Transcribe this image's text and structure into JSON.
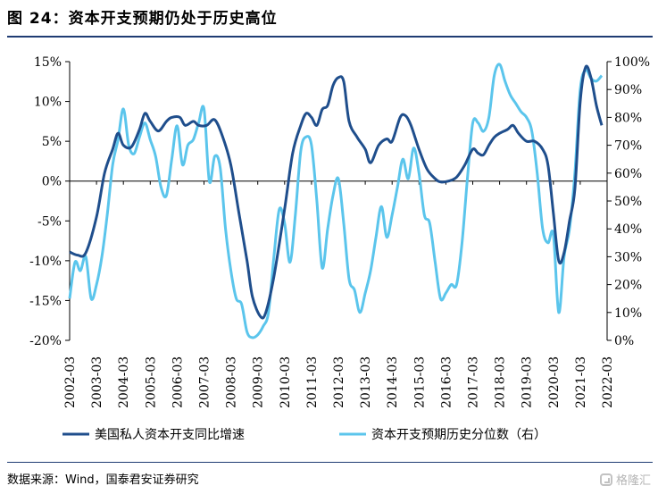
{
  "header": {
    "title": "图 24：资本开支预期仍处于历史高位"
  },
  "footer": {
    "source": "数据来源：Wind，国泰君安证券研究",
    "watermark": "格隆汇"
  },
  "colors": {
    "series1": "#1f4e8c",
    "series2": "#5bc5ec",
    "axis": "#000000",
    "rule": "#1f3b73"
  },
  "chart_data": {
    "type": "line",
    "x_tick_labels": [
      "2002-03",
      "2003-03",
      "2004-03",
      "2005-03",
      "2006-03",
      "2007-03",
      "2008-03",
      "2009-03",
      "2010-03",
      "2011-03",
      "2012-03",
      "2013-03",
      "2014-03",
      "2015-03",
      "2016-03",
      "2017-03",
      "2018-03",
      "2019-03",
      "2020-03",
      "2021-03",
      "2022-03"
    ],
    "x_range": [
      2002.2,
      2022.2
    ],
    "y_left": {
      "min": -20,
      "max": 15,
      "ticks": [
        "-20%",
        "-15%",
        "-10%",
        "-5%",
        "0%",
        "5%",
        "10%",
        "15%"
      ],
      "tick_values": [
        -20,
        -15,
        -10,
        -5,
        0,
        5,
        10,
        15
      ]
    },
    "y_right": {
      "min": 0,
      "max": 100,
      "ticks": [
        "0%",
        "10%",
        "20%",
        "30%",
        "40%",
        "50%",
        "60%",
        "70%",
        "80%",
        "90%",
        "100%"
      ],
      "tick_values": [
        0,
        10,
        20,
        30,
        40,
        50,
        60,
        70,
        80,
        90,
        100
      ]
    },
    "legend_position": "bottom",
    "series": [
      {
        "name": "美国私人资本开支同比增速",
        "axis": "left",
        "points": [
          [
            2002.2,
            -8.9
          ],
          [
            2002.5,
            -9.3
          ],
          [
            2002.8,
            -9.0
          ],
          [
            2003.2,
            -4.5
          ],
          [
            2003.5,
            1.0
          ],
          [
            2003.8,
            4.0
          ],
          [
            2004.0,
            6.0
          ],
          [
            2004.2,
            4.5
          ],
          [
            2004.5,
            4.3
          ],
          [
            2004.8,
            6.5
          ],
          [
            2005.0,
            8.5
          ],
          [
            2005.2,
            7.5
          ],
          [
            2005.5,
            6.3
          ],
          [
            2005.8,
            7.5
          ],
          [
            2006.0,
            8.0
          ],
          [
            2006.3,
            8.0
          ],
          [
            2006.5,
            7.0
          ],
          [
            2006.8,
            7.5
          ],
          [
            2007.0,
            7.0
          ],
          [
            2007.3,
            7.0
          ],
          [
            2007.6,
            7.7
          ],
          [
            2007.9,
            5.5
          ],
          [
            2008.2,
            2.0
          ],
          [
            2008.5,
            -4.0
          ],
          [
            2008.8,
            -10.0
          ],
          [
            2009.0,
            -14.5
          ],
          [
            2009.3,
            -17.0
          ],
          [
            2009.5,
            -16.5
          ],
          [
            2009.8,
            -12.0
          ],
          [
            2010.2,
            -3.5
          ],
          [
            2010.5,
            3.5
          ],
          [
            2010.8,
            7.0
          ],
          [
            2011.0,
            8.5
          ],
          [
            2011.2,
            8.0
          ],
          [
            2011.4,
            7.0
          ],
          [
            2011.6,
            9.0
          ],
          [
            2011.8,
            9.5
          ],
          [
            2012.0,
            12.0
          ],
          [
            2012.2,
            13.0
          ],
          [
            2012.4,
            12.5
          ],
          [
            2012.6,
            7.5
          ],
          [
            2012.9,
            5.5
          ],
          [
            2013.2,
            4.0
          ],
          [
            2013.4,
            2.3
          ],
          [
            2013.7,
            4.5
          ],
          [
            2014.0,
            5.3
          ],
          [
            2014.2,
            5.0
          ],
          [
            2014.5,
            8.0
          ],
          [
            2014.7,
            8.2
          ],
          [
            2014.9,
            7.0
          ],
          [
            2015.2,
            4.0
          ],
          [
            2015.5,
            1.5
          ],
          [
            2015.8,
            0.3
          ],
          [
            2016.0,
            -0.1
          ],
          [
            2016.3,
            0.0
          ],
          [
            2016.6,
            0.5
          ],
          [
            2016.9,
            2.0
          ],
          [
            2017.2,
            4.0
          ],
          [
            2017.4,
            3.5
          ],
          [
            2017.6,
            3.3
          ],
          [
            2017.8,
            4.5
          ],
          [
            2018.0,
            5.5
          ],
          [
            2018.2,
            6.0
          ],
          [
            2018.5,
            6.5
          ],
          [
            2018.7,
            7.0
          ],
          [
            2018.9,
            6.0
          ],
          [
            2019.2,
            5.0
          ],
          [
            2019.5,
            5.0
          ],
          [
            2019.8,
            4.0
          ],
          [
            2020.0,
            2.0
          ],
          [
            2020.2,
            -4.0
          ],
          [
            2020.4,
            -10.0
          ],
          [
            2020.6,
            -9.0
          ],
          [
            2020.8,
            -5.0
          ],
          [
            2021.0,
            -1.0
          ],
          [
            2021.2,
            10.0
          ],
          [
            2021.4,
            14.3
          ],
          [
            2021.6,
            13.0
          ],
          [
            2021.8,
            9.5
          ],
          [
            2022.0,
            7.0
          ]
        ]
      },
      {
        "name": "资本开支预期历史分位数（右）",
        "axis": "right",
        "points": [
          [
            2002.2,
            15
          ],
          [
            2002.4,
            28
          ],
          [
            2002.6,
            25
          ],
          [
            2002.8,
            30
          ],
          [
            2003.0,
            15
          ],
          [
            2003.2,
            20
          ],
          [
            2003.4,
            30
          ],
          [
            2003.6,
            45
          ],
          [
            2003.8,
            63
          ],
          [
            2004.0,
            72
          ],
          [
            2004.2,
            83
          ],
          [
            2004.4,
            70
          ],
          [
            2004.6,
            67
          ],
          [
            2004.8,
            73
          ],
          [
            2005.0,
            78
          ],
          [
            2005.2,
            72
          ],
          [
            2005.4,
            66
          ],
          [
            2005.6,
            55
          ],
          [
            2005.8,
            52
          ],
          [
            2006.0,
            65
          ],
          [
            2006.2,
            77
          ],
          [
            2006.4,
            63
          ],
          [
            2006.6,
            70
          ],
          [
            2006.8,
            72
          ],
          [
            2007.0,
            78
          ],
          [
            2007.2,
            83
          ],
          [
            2007.4,
            57
          ],
          [
            2007.6,
            66
          ],
          [
            2007.8,
            62
          ],
          [
            2008.0,
            40
          ],
          [
            2008.2,
            25
          ],
          [
            2008.4,
            15
          ],
          [
            2008.6,
            13
          ],
          [
            2008.8,
            3
          ],
          [
            2009.0,
            1
          ],
          [
            2009.2,
            2
          ],
          [
            2009.4,
            5
          ],
          [
            2009.6,
            10
          ],
          [
            2009.8,
            30
          ],
          [
            2010.0,
            47
          ],
          [
            2010.2,
            42
          ],
          [
            2010.4,
            28
          ],
          [
            2010.6,
            45
          ],
          [
            2010.8,
            68
          ],
          [
            2011.0,
            73
          ],
          [
            2011.2,
            70
          ],
          [
            2011.4,
            50
          ],
          [
            2011.6,
            26
          ],
          [
            2011.8,
            40
          ],
          [
            2012.0,
            52
          ],
          [
            2012.2,
            58
          ],
          [
            2012.4,
            42
          ],
          [
            2012.6,
            22
          ],
          [
            2012.8,
            18
          ],
          [
            2013.0,
            10
          ],
          [
            2013.2,
            17
          ],
          [
            2013.4,
            25
          ],
          [
            2013.6,
            37
          ],
          [
            2013.8,
            48
          ],
          [
            2014.0,
            37
          ],
          [
            2014.2,
            45
          ],
          [
            2014.4,
            55
          ],
          [
            2014.6,
            65
          ],
          [
            2014.8,
            58
          ],
          [
            2015.0,
            69
          ],
          [
            2015.2,
            60
          ],
          [
            2015.4,
            45
          ],
          [
            2015.6,
            42
          ],
          [
            2015.8,
            28
          ],
          [
            2016.0,
            15
          ],
          [
            2016.2,
            17
          ],
          [
            2016.4,
            20
          ],
          [
            2016.6,
            20
          ],
          [
            2016.8,
            35
          ],
          [
            2017.0,
            58
          ],
          [
            2017.2,
            78
          ],
          [
            2017.4,
            78
          ],
          [
            2017.6,
            75
          ],
          [
            2017.8,
            80
          ],
          [
            2018.0,
            95
          ],
          [
            2018.2,
            99
          ],
          [
            2018.4,
            93
          ],
          [
            2018.6,
            88
          ],
          [
            2018.8,
            85
          ],
          [
            2019.0,
            82
          ],
          [
            2019.2,
            80
          ],
          [
            2019.4,
            75
          ],
          [
            2019.6,
            60
          ],
          [
            2019.8,
            40
          ],
          [
            2020.0,
            35
          ],
          [
            2020.2,
            38
          ],
          [
            2020.4,
            10
          ],
          [
            2020.6,
            30
          ],
          [
            2020.8,
            40
          ],
          [
            2021.0,
            60
          ],
          [
            2021.2,
            90
          ],
          [
            2021.4,
            97
          ],
          [
            2021.6,
            94
          ],
          [
            2021.8,
            93
          ],
          [
            2022.0,
            95
          ]
        ]
      }
    ]
  }
}
